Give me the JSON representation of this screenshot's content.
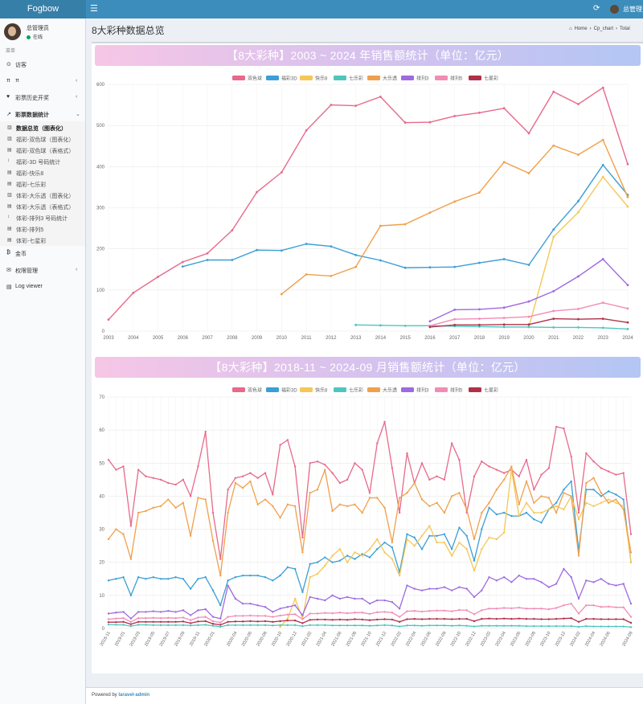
{
  "app": {
    "logo": "Fogbow",
    "toggle_icon": "☰",
    "refresh_icon": "⟳",
    "top_user": "总管理员"
  },
  "user": {
    "name": "总管理员",
    "status": "在线"
  },
  "menu": {
    "header": "菜单",
    "items": [
      {
        "icon": "⊙",
        "label": "访客",
        "chevron": ""
      },
      {
        "icon": "π",
        "label": "π",
        "chevron": "‹"
      },
      {
        "icon": "♥",
        "label": "彩票历史开奖",
        "chevron": "‹"
      },
      {
        "icon": "↗",
        "label": "彩票数据统计",
        "chevron": "⌄"
      }
    ],
    "subitems": [
      {
        "icon": "▥",
        "label": "数据总览（图表化）"
      },
      {
        "icon": "▥",
        "label": "福彩-双色球（图表化）"
      },
      {
        "icon": "▤",
        "label": "福彩-双色球（表格式）"
      },
      {
        "icon": "↕",
        "label": "福彩-3D 号码统计"
      },
      {
        "icon": "▤",
        "label": "福彩-快乐8"
      },
      {
        "icon": "▤",
        "label": "福彩-七乐彩"
      },
      {
        "icon": "▥",
        "label": "体彩-大乐透（图表化）"
      },
      {
        "icon": "▤",
        "label": "体彩-大乐透（表格式）"
      },
      {
        "icon": "↕",
        "label": "体彩-排列3 号码统计"
      },
      {
        "icon": "▤",
        "label": "体彩-排列5"
      },
      {
        "icon": "▤",
        "label": "体彩-七星彩"
      }
    ],
    "bottom": [
      {
        "icon": "₿",
        "label": "金币",
        "chevron": ""
      },
      {
        "icon": "✉",
        "label": "权限管理",
        "chevron": "‹"
      },
      {
        "icon": "▤",
        "label": "Log viewer",
        "chevron": ""
      }
    ]
  },
  "page": {
    "title": "8大彩种数据总览"
  },
  "breadcrumb": {
    "home_icon": "⌂",
    "home": "Home",
    "sep": "›",
    "item1": "Cp_chart",
    "item2": "Total"
  },
  "footer": {
    "powered": "Powered by",
    "brand": "laravel-admin"
  },
  "chart_data": [
    {
      "type": "line",
      "title": "【8大彩种】2003 ~ 2024 年销售额统计（单位：亿元）",
      "legend_position": "top-center",
      "grid": true,
      "x": [
        "2003",
        "2004",
        "2005",
        "2006",
        "2007",
        "2008",
        "2009",
        "2010",
        "2011",
        "2012",
        "2013",
        "2014",
        "2015",
        "2016",
        "2017",
        "2018",
        "2019",
        "2020",
        "2021",
        "2022",
        "2023",
        "2024"
      ],
      "y_ticks": [
        0,
        100,
        200,
        300,
        400,
        500,
        600
      ],
      "ylim": [
        0,
        600
      ],
      "series": [
        {
          "name": "双色球",
          "color": "#e8698a",
          "values": [
            28,
            93,
            132,
            168,
            189,
            245,
            338,
            386,
            488,
            550,
            548,
            570,
            507,
            508,
            523,
            531,
            542,
            481,
            582,
            552,
            592,
            406
          ]
        },
        {
          "name": "福彩3D",
          "color": "#3a9fd6",
          "values": [
            null,
            null,
            null,
            157,
            173,
            173,
            197,
            196,
            212,
            206,
            185,
            172,
            154,
            155,
            156,
            166,
            175,
            161,
            247,
            316,
            404,
            331
          ]
        },
        {
          "name": "快乐8",
          "color": "#f5c756",
          "values": [
            null,
            null,
            null,
            null,
            null,
            null,
            null,
            null,
            null,
            null,
            null,
            null,
            null,
            null,
            null,
            null,
            null,
            10,
            229,
            289,
            375,
            303
          ]
        },
        {
          "name": "七乐彩",
          "color": "#4ec6bd",
          "values": [
            null,
            null,
            null,
            null,
            null,
            null,
            null,
            null,
            null,
            null,
            15,
            14,
            13,
            13,
            12,
            11,
            10,
            10,
            9,
            9,
            8,
            5
          ]
        },
        {
          "name": "大乐透",
          "color": "#f0a04b",
          "values": [
            null,
            null,
            null,
            null,
            null,
            null,
            null,
            90,
            138,
            134,
            156,
            256,
            260,
            288,
            315,
            337,
            411,
            384,
            451,
            429,
            465,
            326
          ]
        },
        {
          "name": "排列3",
          "color": "#9e6ae0",
          "values": [
            null,
            null,
            null,
            null,
            null,
            null,
            null,
            null,
            null,
            null,
            null,
            null,
            null,
            24,
            52,
            53,
            57,
            72,
            97,
            133,
            175,
            112
          ]
        },
        {
          "name": "排列5",
          "color": "#f28cb5",
          "values": [
            null,
            null,
            null,
            null,
            null,
            null,
            null,
            null,
            null,
            null,
            null,
            null,
            null,
            13,
            29,
            30,
            32,
            35,
            49,
            54,
            69,
            55
          ]
        },
        {
          "name": "七星彩",
          "color": "#b0304a",
          "values": [
            null,
            null,
            null,
            null,
            null,
            null,
            null,
            null,
            null,
            null,
            null,
            null,
            null,
            10,
            15,
            15,
            16,
            16,
            30,
            29,
            30,
            21
          ]
        }
      ]
    },
    {
      "type": "line",
      "title": "【8大彩种】2018-11 ~ 2024-09 月销售额统计（单位：亿元）",
      "legend_position": "top-center",
      "grid": true,
      "x": [
        "2018-11",
        "2018-12",
        "2019-01",
        "2019-02",
        "2019-03",
        "2019-04",
        "2019-05",
        "2019-06",
        "2019-07",
        "2019-08",
        "2019-09",
        "2019-10",
        "2019-11",
        "2019-12",
        "2020-01",
        "2020-02",
        "2020-03",
        "2020-04",
        "2020-05",
        "2020-06",
        "2020-07",
        "2020-08",
        "2020-09",
        "2020-10",
        "2020-11",
        "2020-12",
        "2021-01",
        "2021-02",
        "2021-03",
        "2021-04",
        "2021-05",
        "2021-06",
        "2021-07",
        "2021-08",
        "2021-09",
        "2021-10",
        "2021-11",
        "2021-12",
        "2022-01",
        "2022-02",
        "2022-03",
        "2022-04",
        "2022-05",
        "2022-06",
        "2022-07",
        "2022-08",
        "2022-09",
        "2022-10",
        "2022-11",
        "2022-12",
        "2023-01",
        "2023-02",
        "2023-03",
        "2023-04",
        "2023-05",
        "2023-06",
        "2023-07",
        "2023-08",
        "2023-09",
        "2023-10",
        "2023-11",
        "2023-12",
        "2024-01",
        "2024-02",
        "2024-03",
        "2024-04",
        "2024-05",
        "2024-06",
        "2024-07",
        "2024-08",
        "2024-09"
      ],
      "x_tick_labels": [
        "2018-11",
        "2019-01",
        "2019-03",
        "2019-05",
        "2019-07",
        "2019-09",
        "2019-11",
        "2020-01",
        "2020-04",
        "2020-06",
        "2020-08",
        "2020-10",
        "2020-12",
        "2021-02",
        "2021-04",
        "2021-06",
        "2021-08",
        "2021-10",
        "2021-12",
        "2022-02",
        "2022-04",
        "2022-06",
        "2022-08",
        "2022-10",
        "2022-12",
        "2023-02",
        "2023-04",
        "2023-06",
        "2023-08",
        "2023-10",
        "2023-12",
        "2024-02",
        "2024-04",
        "2024-06",
        "2024-09"
      ],
      "y_ticks": [
        0,
        10,
        20,
        30,
        40,
        50,
        60,
        70
      ],
      "ylim": [
        0,
        70
      ],
      "series": [
        {
          "name": "双色球",
          "color": "#e8698a",
          "values": [
            51,
            48,
            49,
            31,
            48,
            46,
            45.5,
            45,
            44,
            43.5,
            45,
            40,
            49,
            59.5,
            35,
            21,
            42,
            45.5,
            46,
            47,
            45.5,
            47,
            40.5,
            55.5,
            57,
            49,
            27.5,
            50,
            50.5,
            49.5,
            47,
            44,
            45,
            50,
            48,
            41,
            56,
            62.5,
            48.5,
            35,
            53,
            44,
            50,
            45,
            46,
            45,
            56,
            51,
            35,
            46,
            50.5,
            49,
            48,
            47,
            48,
            46,
            51,
            42,
            46.5,
            48.5,
            61,
            60.5,
            52,
            35,
            53,
            50.5,
            48.5,
            47.5,
            46.5,
            47,
            28.5
          ]
        },
        {
          "name": "福彩3D",
          "color": "#3a9fd6",
          "values": [
            14.5,
            15,
            15.5,
            10,
            15.5,
            15,
            15.5,
            15,
            15,
            15.5,
            15,
            12,
            15,
            15.5,
            11.5,
            7,
            14.5,
            15.5,
            16,
            16,
            16,
            15.5,
            14.5,
            16,
            18.5,
            18,
            11,
            19.5,
            20,
            21.5,
            20,
            20.5,
            22,
            21,
            22.5,
            21.5,
            24,
            26,
            24.5,
            17,
            28.5,
            27.5,
            24,
            28,
            28,
            28.5,
            24,
            30.5,
            28,
            20.5,
            30,
            36.5,
            34.5,
            35,
            34,
            34,
            35,
            33,
            32,
            36,
            38,
            42,
            44.5,
            23.5,
            42,
            42,
            40,
            41.5,
            40.5,
            39,
            20
          ]
        },
        {
          "name": "快乐8",
          "color": "#f5c756",
          "values": [
            null,
            null,
            null,
            null,
            null,
            null,
            null,
            null,
            null,
            null,
            null,
            null,
            null,
            null,
            null,
            null,
            null,
            null,
            null,
            null,
            null,
            null,
            null,
            0.5,
            3,
            9,
            3,
            15.5,
            16.5,
            19,
            22,
            24,
            20,
            23,
            22,
            24,
            27,
            23,
            21,
            16,
            27,
            25,
            28,
            31,
            26,
            26,
            22,
            26,
            24,
            17.5,
            24,
            27.5,
            27,
            29,
            48,
            34,
            38,
            35,
            35,
            36,
            37,
            36,
            40,
            33,
            38,
            37,
            38,
            39,
            38,
            37,
            20
          ]
        },
        {
          "name": "七乐彩",
          "color": "#4ec6bd",
          "values": [
            1.2,
            1.1,
            1.1,
            0.7,
            1.1,
            1.1,
            1,
            1,
            1,
            1,
            1,
            0.9,
            1,
            1.1,
            0.8,
            0.5,
            1,
            1,
            1,
            1,
            1,
            1,
            0.9,
            1,
            1,
            1,
            0.7,
            1,
            1,
            1,
            0.9,
            0.9,
            0.9,
            0.9,
            0.9,
            0.8,
            0.9,
            1,
            0.9,
            0.6,
            0.9,
            0.9,
            0.8,
            0.9,
            0.9,
            0.9,
            0.8,
            0.9,
            0.8,
            0.6,
            0.8,
            0.8,
            0.8,
            0.8,
            0.8,
            0.8,
            0.7,
            0.7,
            0.7,
            0.7,
            0.7,
            0.7,
            0.7,
            0.5,
            0.7,
            0.6,
            0.6,
            0.6,
            0.6,
            0.6,
            0.4
          ]
        },
        {
          "name": "大乐透",
          "color": "#f0a04b",
          "values": [
            27,
            30,
            28.5,
            21,
            35,
            35.5,
            36.5,
            37,
            39,
            36.5,
            38,
            28,
            39.5,
            39,
            26.5,
            16,
            35,
            44,
            42.5,
            44.5,
            37.5,
            39,
            37,
            33.5,
            37.5,
            37,
            23,
            41,
            42,
            48,
            35.5,
            37.5,
            37,
            37.5,
            35,
            39.5,
            39.5,
            36.5,
            26,
            39.5,
            41,
            44,
            39,
            37,
            38,
            35,
            40,
            41,
            36,
            27,
            35,
            38,
            42,
            45,
            49,
            37.5,
            44.5,
            38,
            40,
            39.5,
            35,
            41,
            40,
            22,
            44,
            45.5,
            41,
            38,
            39,
            36,
            23
          ]
        },
        {
          "name": "排列3",
          "color": "#9e6ae0",
          "values": [
            4.5,
            4.8,
            5,
            3,
            5,
            5,
            5.2,
            5,
            5.3,
            5,
            5.5,
            4,
            5.5,
            5.8,
            3.5,
            3,
            13,
            9,
            7.5,
            7.5,
            7,
            6.5,
            5,
            6,
            6.5,
            7,
            4,
            9.5,
            9,
            8.5,
            10,
            9,
            9.5,
            9,
            9,
            7.5,
            8.5,
            8.5,
            8,
            6,
            13,
            12,
            11.5,
            12,
            12,
            12.5,
            11.5,
            12.5,
            12,
            9.5,
            11.5,
            15.5,
            14.5,
            15.5,
            14,
            16,
            15,
            15,
            14,
            12.5,
            13.5,
            18,
            15.5,
            9,
            14.5,
            14,
            15,
            13.5,
            13,
            13.5,
            7.5
          ]
        },
        {
          "name": "排列5",
          "color": "#f28cb5",
          "values": [
            2.8,
            3,
            3.1,
            2,
            3.1,
            3.1,
            3.2,
            3.1,
            3.2,
            3.1,
            3.3,
            2.5,
            3.3,
            3.5,
            2.2,
            1.8,
            3.5,
            3.8,
            3.8,
            3.9,
            3.8,
            3.8,
            3.5,
            3.9,
            4.2,
            4.3,
            2.8,
            4.5,
            4.5,
            4.7,
            4.6,
            4.8,
            4.6,
            4.8,
            4.8,
            4.4,
            4.9,
            5,
            4.8,
            3.5,
            5.2,
            5.3,
            5.1,
            5.3,
            5.4,
            5.4,
            5.2,
            5.6,
            5.5,
            4.3,
            5.5,
            6,
            6,
            6.2,
            6.1,
            6.3,
            6,
            6,
            6,
            5.8,
            6.2,
            7,
            7.5,
            4.5,
            7,
            7,
            6.5,
            6.6,
            6.4,
            6.4,
            3.5
          ]
        },
        {
          "name": "七星彩",
          "color": "#b0304a",
          "values": [
            1.9,
            1.9,
            2,
            1.3,
            2,
            2,
            2,
            2,
            2,
            2,
            2.1,
            1.6,
            2.1,
            2.2,
            1.4,
            1.1,
            2,
            2.1,
            2.1,
            2.2,
            2.1,
            2.2,
            2,
            2.2,
            2.4,
            2.4,
            1.6,
            2.6,
            2.7,
            2.7,
            2.6,
            2.7,
            2.6,
            2.8,
            2.7,
            2.5,
            2.7,
            2.8,
            2.7,
            2,
            2.8,
            2.9,
            2.8,
            2.9,
            2.9,
            2.9,
            2.8,
            2.9,
            2.9,
            2.2,
            2.9,
            3,
            2.9,
            3,
            2.9,
            3,
            2.9,
            2.9,
            2.8,
            2.8,
            2.9,
            3,
            3.1,
            2,
            2.9,
            2.9,
            2.8,
            2.8,
            2.8,
            2.8,
            1.7
          ]
        }
      ]
    }
  ]
}
